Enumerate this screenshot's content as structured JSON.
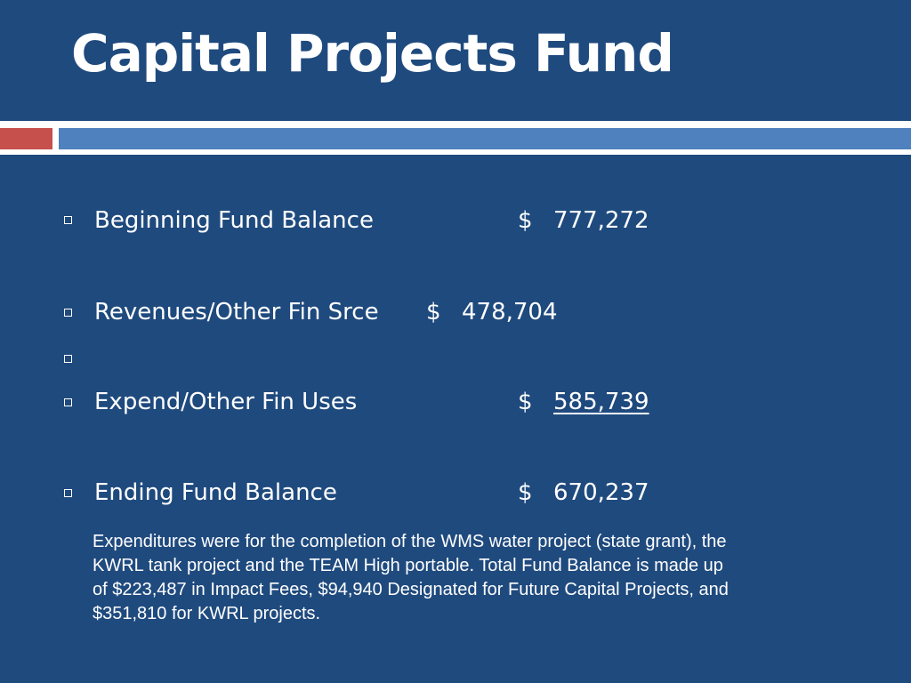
{
  "slide": {
    "title": "Capital Projects Fund",
    "items": [
      {
        "label": "Beginning Fund Balance",
        "currency": "$",
        "amount": "777,272"
      },
      {
        "label": "Revenues/Other Fin Srce",
        "currency": "$",
        "amount": "478,704"
      },
      {
        "label": ""
      },
      {
        "label": "Expend/Other Fin Uses",
        "currency": "$",
        "amount": "585,739"
      },
      {
        "label": "Ending Fund Balance",
        "currency": "$",
        "amount": "670,237"
      }
    ],
    "note": "Expenditures were for the completion of the WMS water project (state grant), the KWRL tank project and the TEAM High portable. Total Fund Balance is made up of $223,487 in Impact Fees, $94,940 Designated for Future Capital Projects, and $351,810 for KWRL projects."
  },
  "colors": {
    "background": "#1f4a7e",
    "accent_red": "#c5504c",
    "accent_blue": "#4e81bd",
    "text": "#ffffff"
  }
}
